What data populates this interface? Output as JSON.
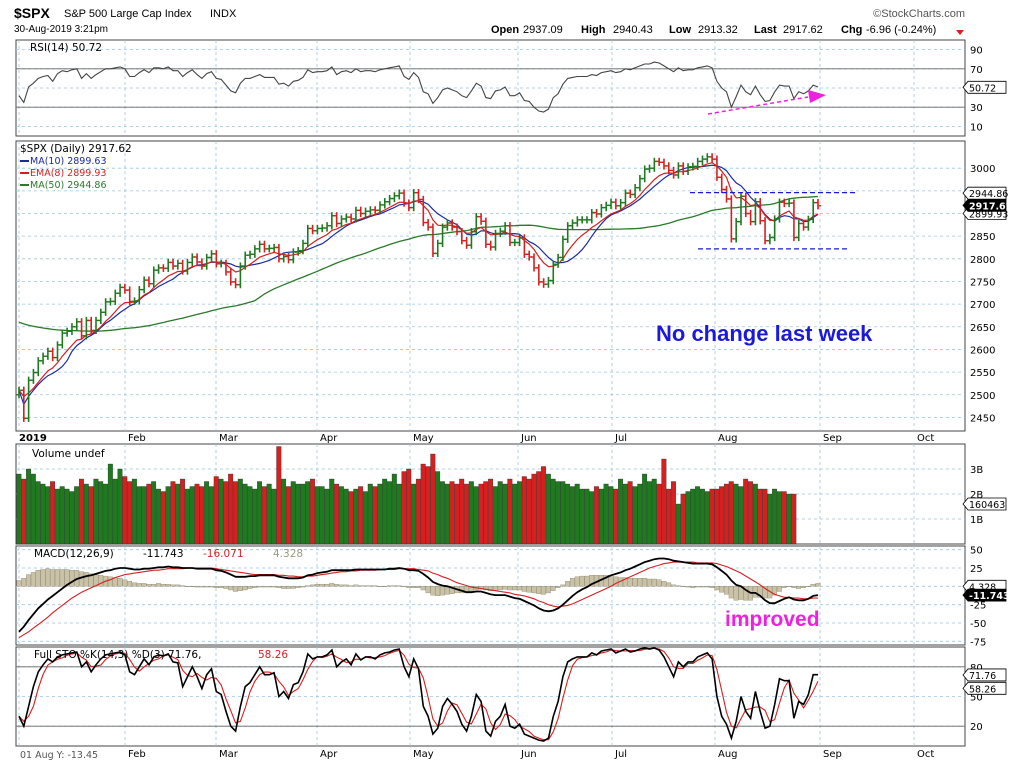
{
  "header": {
    "symbol": "$SPX",
    "name": "S&P 500 Large Cap Index",
    "exchange": "INDX",
    "brand": "©StockCharts.com",
    "datetime": "30-Aug-2019 3:21pm",
    "open_label": "Open",
    "open": "2937.09",
    "high_label": "High",
    "high": "2940.43",
    "low_label": "Low",
    "low": "2913.32",
    "last_label": "Last",
    "last": "2917.62",
    "chg_label": "Chg",
    "chg": "-6.96 (-0.24%)"
  },
  "colors": {
    "bg": "#ffffff",
    "panel_bg": "#ffffff",
    "grid": "#9dc4de",
    "up": "#1f7a1f",
    "down": "#d62020",
    "ma10": "#1a2c9c",
    "ema8": "#d62020",
    "ma50": "#2a7a2a",
    "annotation_blue": "#1a1ad8",
    "annotation_magenta": "#ee22dd"
  },
  "chart_data": {
    "type": "ohlc",
    "x_labels": [
      "2019",
      "Feb",
      "Mar",
      "Apr",
      "May",
      "Jun",
      "Jul",
      "Aug",
      "Sep",
      "Oct"
    ],
    "price": {
      "legend_title": "$SPX (Daily) 2917.62",
      "legends": [
        {
          "name": "MA(10) 2899.63",
          "color": "#1a2c9c"
        },
        {
          "name": "EMA(8) 2899.93",
          "color": "#d62020"
        },
        {
          "name": "MA(50) 2944.86",
          "color": "#2a7a2a"
        }
      ],
      "ylim": [
        2420,
        3060
      ],
      "ticks": [
        "3000",
        "2950",
        "2900",
        "2850",
        "2800",
        "2750",
        "2700",
        "2650",
        "2600",
        "2550",
        "2500",
        "2450"
      ],
      "right_tags": [
        "2944.86",
        "2917.62",
        "2899.93"
      ],
      "close": [
        2510,
        2448,
        2532,
        2549,
        2575,
        2585,
        2596,
        2582,
        2610,
        2636,
        2640,
        2650,
        2661,
        2630,
        2664,
        2642,
        2664,
        2682,
        2705,
        2706,
        2724,
        2737,
        2731,
        2706,
        2707,
        2732,
        2753,
        2745,
        2775,
        2780,
        2779,
        2792,
        2784,
        2790,
        2773,
        2792,
        2804,
        2793,
        2784,
        2803,
        2811,
        2789,
        2790,
        2771,
        2749,
        2743,
        2784,
        2808,
        2810,
        2822,
        2832,
        2822,
        2823,
        2825,
        2800,
        2805,
        2798,
        2815,
        2818,
        2834,
        2867,
        2862,
        2867,
        2868,
        2873,
        2895,
        2878,
        2888,
        2892,
        2888,
        2907,
        2900,
        2905,
        2908,
        2907,
        2919,
        2926,
        2933,
        2939,
        2945,
        2923,
        2913,
        2946,
        2931,
        2880,
        2870,
        2812,
        2834,
        2870,
        2879,
        2870,
        2860,
        2840,
        2830,
        2860,
        2893,
        2883,
        2832,
        2826,
        2856,
        2861,
        2873,
        2836,
        2836,
        2846,
        2810,
        2804,
        2780,
        2749,
        2744,
        2752,
        2788,
        2803,
        2843,
        2873,
        2879,
        2886,
        2886,
        2886,
        2902,
        2899,
        2913,
        2918,
        2925,
        2917,
        2924,
        2945,
        2942,
        2957,
        2977,
        2998,
        3000,
        3015,
        3013,
        3005,
        2995,
        2985,
        3005,
        2993,
        3003,
        3004,
        3015,
        3020,
        3025,
        3020,
        2980,
        2953,
        2932,
        2844,
        2882,
        2938,
        2900,
        2882,
        2926,
        2884,
        2840,
        2847,
        2888,
        2925,
        2922,
        2923,
        2847,
        2878,
        2870,
        2887,
        2924,
        2917
      ]
    },
    "rsi": {
      "label": "RSI(14) 50.72",
      "ylim": [
        0,
        100
      ],
      "ticks": [
        "90",
        "70",
        "50",
        "30",
        "10"
      ],
      "value_tag": "50.72",
      "values": [
        42,
        35,
        51,
        55,
        60,
        62,
        63,
        57,
        65,
        68,
        67,
        69,
        70,
        60,
        65,
        60,
        64,
        67,
        70,
        70,
        71,
        72,
        70,
        62,
        62,
        66,
        69,
        66,
        71,
        71,
        70,
        72,
        68,
        68,
        62,
        66,
        69,
        64,
        60,
        65,
        67,
        60,
        59,
        53,
        47,
        45,
        55,
        60,
        60,
        62,
        64,
        61,
        61,
        61,
        54,
        55,
        52,
        57,
        58,
        61,
        69,
        66,
        67,
        67,
        68,
        72,
        64,
        67,
        68,
        66,
        70,
        67,
        68,
        68,
        67,
        69,
        70,
        71,
        72,
        73,
        62,
        59,
        66,
        61,
        46,
        44,
        34,
        40,
        48,
        50,
        48,
        46,
        42,
        40,
        47,
        55,
        52,
        40,
        39,
        47,
        48,
        51,
        42,
        42,
        45,
        37,
        36,
        30,
        26,
        25,
        28,
        40,
        44,
        54,
        60,
        61,
        62,
        62,
        62,
        64,
        63,
        66,
        67,
        68,
        66,
        67,
        70,
        69,
        71,
        73,
        75,
        75,
        77,
        76,
        73,
        70,
        67,
        71,
        68,
        69,
        69,
        71,
        72,
        73,
        71,
        57,
        50,
        46,
        30,
        41,
        53,
        46,
        43,
        52,
        43,
        36,
        37,
        46,
        53,
        52,
        52,
        39,
        46,
        44,
        47,
        53,
        51
      ]
    },
    "volume": {
      "label": "Volume undef",
      "ylim": [
        0,
        4000000000
      ],
      "ticks": [
        "3B",
        "2B",
        "1B"
      ],
      "value_tag": "160463",
      "values": [
        2.8,
        2.6,
        3.0,
        2.8,
        2.5,
        2.4,
        2.3,
        2.5,
        2.2,
        2.3,
        2.2,
        2.1,
        2.3,
        2.6,
        2.4,
        2.3,
        2.6,
        2.5,
        2.4,
        3.2,
        2.6,
        3.0,
        2.7,
        2.5,
        2.6,
        2.3,
        2.3,
        2.4,
        2.5,
        2.2,
        2.1,
        2.3,
        2.5,
        2.4,
        2.6,
        2.2,
        2.3,
        2.4,
        2.3,
        2.5,
        2.3,
        2.7,
        2.6,
        2.5,
        2.8,
        2.5,
        2.6,
        2.4,
        2.3,
        2.2,
        2.5,
        2.3,
        2.4,
        2.2,
        3.9,
        2.6,
        2.3,
        2.5,
        2.4,
        2.4,
        2.5,
        2.6,
        2.3,
        2.3,
        2.2,
        2.6,
        2.4,
        2.3,
        2.2,
        2.1,
        2.2,
        2.3,
        2.1,
        2.4,
        2.3,
        2.4,
        2.6,
        2.5,
        2.8,
        2.4,
        2.9,
        3.0,
        2.4,
        2.6,
        3.2,
        3.1,
        3.6,
        2.9,
        2.5,
        2.4,
        2.5,
        2.4,
        2.6,
        2.4,
        2.5,
        2.3,
        2.4,
        2.5,
        2.6,
        2.3,
        2.5,
        2.4,
        2.6,
        2.4,
        2.5,
        2.7,
        2.6,
        2.8,
        2.9,
        3.1,
        2.8,
        2.6,
        2.5,
        2.5,
        2.4,
        2.3,
        2.4,
        2.2,
        2.2,
        2.1,
        2.3,
        2.2,
        2.4,
        2.3,
        2.2,
        2.6,
        2.4,
        2.5,
        2.3,
        2.4,
        2.8,
        2.5,
        2.6,
        2.4,
        3.4,
        2.2,
        2.5,
        1.6,
        2.0,
        2.1,
        2.2,
        2.3,
        2.2,
        2.1,
        2.2,
        2.2,
        2.3,
        2.4,
        2.5,
        2.4,
        2.3,
        2.6,
        2.5,
        2.4,
        2.2,
        2.2,
        2.0,
        2.2,
        2.1,
        2.1,
        2.0,
        2.0
      ],
      "values_scale": "billions"
    },
    "macd": {
      "label": "MACD(12,26,9)",
      "macd_value": "-11.743",
      "signal_value": "-16.071",
      "hist_value": "4.328",
      "ylim": [
        -80,
        55
      ],
      "ticks": [
        "50",
        "25",
        "0",
        "-25",
        "-50",
        "-75"
      ],
      "value_tags": [
        "4.328",
        "-11.743"
      ],
      "macd": [
        -62,
        -55,
        -46,
        -38,
        -30,
        -24,
        -18,
        -13,
        -8,
        -3,
        2,
        6,
        10,
        12,
        14,
        15,
        17,
        19,
        21,
        22,
        24,
        25,
        25,
        24,
        23,
        23,
        24,
        24,
        25,
        26,
        26,
        27,
        26,
        26,
        25,
        25,
        25,
        24,
        24,
        24,
        24,
        22,
        21,
        19,
        16,
        13,
        13,
        13,
        14,
        14,
        15,
        15,
        15,
        15,
        13,
        12,
        11,
        11,
        11,
        12,
        15,
        16,
        18,
        19,
        20,
        22,
        22,
        22,
        22,
        22,
        23,
        23,
        23,
        23,
        23,
        23,
        23,
        24,
        24,
        25,
        24,
        22,
        22,
        21,
        17,
        12,
        6,
        3,
        1,
        0,
        -2,
        -4,
        -6,
        -8,
        -8,
        -7,
        -7,
        -9,
        -11,
        -12,
        -12,
        -12,
        -14,
        -16,
        -17,
        -20,
        -23,
        -26,
        -30,
        -33,
        -34,
        -33,
        -30,
        -25,
        -19,
        -13,
        -8,
        -4,
        -1,
        3,
        6,
        9,
        12,
        15,
        17,
        19,
        22,
        24,
        27,
        30,
        33,
        35,
        37,
        38,
        38,
        37,
        35,
        34,
        33,
        32,
        31,
        31,
        31,
        31,
        30,
        26,
        21,
        16,
        8,
        2,
        0,
        -5,
        -9,
        -9,
        -13,
        -19,
        -23,
        -23,
        -20,
        -17,
        -15,
        -18,
        -19,
        -19,
        -17,
        -13,
        -12
      ],
      "signal": [
        -70,
        -66,
        -62,
        -57,
        -52,
        -47,
        -42,
        -36,
        -31,
        -26,
        -21,
        -16,
        -12,
        -8,
        -5,
        -2,
        1,
        4,
        7,
        9,
        12,
        14,
        16,
        17,
        18,
        19,
        20,
        21,
        22,
        22,
        23,
        24,
        24,
        24,
        24,
        25,
        25,
        25,
        25,
        25,
        25,
        24,
        23,
        22,
        21,
        20,
        19,
        18,
        17,
        16,
        16,
        16,
        16,
        16,
        15,
        15,
        14,
        14,
        13,
        13,
        14,
        14,
        15,
        16,
        17,
        18,
        19,
        20,
        20,
        21,
        21,
        22,
        22,
        22,
        22,
        23,
        23,
        23,
        23,
        24,
        24,
        24,
        24,
        23,
        22,
        21,
        18,
        16,
        13,
        11,
        8,
        5,
        3,
        1,
        -1,
        -2,
        -3,
        -4,
        -5,
        -6,
        -7,
        -8,
        -9,
        -11,
        -12,
        -13,
        -15,
        -17,
        -20,
        -22,
        -25,
        -27,
        -28,
        -27,
        -26,
        -24,
        -21,
        -18,
        -15,
        -12,
        -9,
        -6,
        -3,
        0,
        4,
        7,
        10,
        13,
        16,
        19,
        22,
        25,
        27,
        29,
        31,
        32,
        33,
        33,
        33,
        33,
        33,
        32,
        32,
        32,
        32,
        31,
        29,
        27,
        24,
        21,
        18,
        14,
        10,
        6,
        2,
        -3,
        -7,
        -11,
        -13,
        -15,
        -15,
        -16,
        -16,
        -17,
        -17,
        -16,
        -16
      ],
      "hist": [
        8,
        11,
        16,
        19,
        22,
        23,
        24,
        23,
        23,
        23,
        23,
        22,
        22,
        20,
        19,
        17,
        16,
        15,
        14,
        13,
        12,
        11,
        9,
        7,
        5,
        4,
        4,
        3,
        3,
        4,
        3,
        3,
        2,
        2,
        1,
        0,
        0,
        -1,
        -1,
        -1,
        -1,
        -2,
        -2,
        -3,
        -5,
        -7,
        -6,
        -5,
        -3,
        -2,
        -1,
        -1,
        -1,
        -1,
        -2,
        -3,
        -3,
        -3,
        -2,
        -1,
        1,
        2,
        3,
        3,
        3,
        4,
        3,
        2,
        2,
        1,
        2,
        1,
        1,
        1,
        1,
        0,
        0,
        1,
        1,
        1,
        0,
        -2,
        -2,
        -2,
        -5,
        -9,
        -12,
        -13,
        -12,
        -11,
        -10,
        -9,
        -9,
        -9,
        -7,
        -5,
        -4,
        -5,
        -6,
        -6,
        -5,
        -4,
        -5,
        -5,
        -5,
        -7,
        -8,
        -9,
        -10,
        -11,
        -9,
        -6,
        -2,
        2,
        7,
        11,
        13,
        14,
        14,
        15,
        15,
        15,
        15,
        15,
        13,
        12,
        12,
        11,
        11,
        11,
        11,
        10,
        10,
        9,
        7,
        5,
        2,
        1,
        0,
        -1,
        -2,
        -1,
        -1,
        -1,
        -2,
        -5,
        -8,
        -11,
        -16,
        -19,
        -18,
        -19,
        -19,
        -15,
        -15,
        -16,
        -16,
        -12,
        -7,
        -2,
        0,
        -2,
        -3,
        -2,
        0,
        3,
        4
      ]
    },
    "sto": {
      "label": "Full STO %K(14,3) %D(3) 71.76,",
      "d_value": "58.26",
      "ylim": [
        0,
        100
      ],
      "ticks": [
        "80",
        "50",
        "20"
      ],
      "value_tags": [
        "71.76",
        "58.26"
      ],
      "k": [
        30,
        20,
        40,
        60,
        75,
        82,
        88,
        85,
        90,
        92,
        93,
        94,
        95,
        80,
        85,
        75,
        82,
        88,
        92,
        93,
        94,
        95,
        92,
        75,
        72,
        80,
        88,
        82,
        90,
        92,
        91,
        93,
        85,
        84,
        60,
        70,
        80,
        70,
        58,
        72,
        78,
        55,
        52,
        35,
        20,
        15,
        40,
        60,
        64,
        72,
        80,
        72,
        72,
        74,
        50,
        55,
        48,
        62,
        64,
        75,
        93,
        88,
        90,
        90,
        92,
        97,
        80,
        85,
        88,
        82,
        93,
        87,
        90,
        90,
        88,
        92,
        94,
        95,
        97,
        98,
        80,
        70,
        88,
        78,
        40,
        30,
        12,
        18,
        40,
        48,
        42,
        35,
        22,
        15,
        30,
        52,
        45,
        15,
        10,
        25,
        30,
        42,
        20,
        18,
        22,
        12,
        10,
        8,
        6,
        5,
        8,
        30,
        45,
        70,
        85,
        88,
        90,
        90,
        90,
        94,
        92,
        96,
        97,
        98,
        94,
        96,
        98,
        95,
        96,
        98,
        99,
        98,
        99,
        97,
        90,
        80,
        70,
        85,
        80,
        85,
        85,
        90,
        92,
        94,
        88,
        50,
        30,
        22,
        8,
        25,
        50,
        35,
        28,
        55,
        35,
        18,
        20,
        42,
        68,
        66,
        66,
        28,
        45,
        42,
        52,
        72,
        72
      ]
    },
    "annotations": [
      {
        "text": "No change last week",
        "color": "#1a1ad8"
      },
      {
        "text": "improved",
        "color": "#ee22dd"
      }
    ],
    "footer_label": "01 Aug Y: -13.45"
  }
}
